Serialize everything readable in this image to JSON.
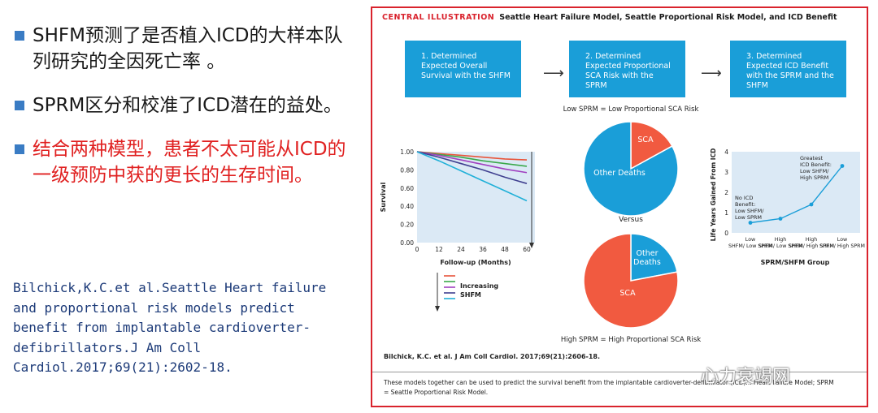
{
  "bullets": [
    {
      "text": "SHFM预测了是否植入ICD的大样本队列研究的全因死亡率 。",
      "color": "#1a1a1a",
      "marker_color": "#3a7cc4"
    },
    {
      "text": "SPRM区分和校准了ICD潜在的益处。",
      "color": "#1a1a1a",
      "marker_color": "#3a7cc4"
    },
    {
      "text": "结合两种模型，患者不太可能从ICD的一级预防中获的更长的生存时间。",
      "color": "#e02020",
      "marker_color": "#3a7cc4"
    }
  ],
  "citation": "Bilchick,K.C.et al.Seattle Heart failure\nand proportional risk models predict\nbenefit from implantable cardioverter-\ndefibrillators.J Am Coll\nCardiol.2017;69(21):2602-18.",
  "illustration": {
    "heading_red": "CENTRAL ILLUSTRATION",
    "heading": "Seattle Heart Failure Model, Seattle Proportional Risk Model, and ICD Benefit",
    "steps": [
      "1. Determined Expected Overall Survival with the SHFM",
      "2. Determined Expected Proportional SCA Risk with the SPRM",
      "3. Determined Expected ICD Benefit with the SPRM and the SHFM"
    ],
    "low_sprm_label": "Low SPRM = Low Proportional SCA Risk",
    "high_sprm_label": "High SPRM = High Proportional SCA Risk",
    "versus": "Versus",
    "citation": "Bilchick, K.C. et al. J Am Coll Cardiol. 2017;69(21):2606-18.",
    "footer": "These models together can be used to predict the survival benefit from the implantable cardioverter-defibrillator (ICD)... Heart Failure Model; SPRM = Seattle Proportional Risk Model."
  },
  "chart_data": [
    {
      "type": "line",
      "ylabel": "Survival",
      "xlabel": "Follow-up (Months)",
      "x": [
        0,
        12,
        24,
        36,
        48,
        60
      ],
      "ylim": [
        0,
        1
      ],
      "yticks": [
        "0.00",
        "0.20",
        "0.40",
        "0.60",
        "0.80",
        "1.00"
      ],
      "legend": "Increasing SHFM",
      "series": [
        {
          "color": "#e8543a",
          "values": [
            1.0,
            0.98,
            0.96,
            0.94,
            0.92,
            0.91
          ]
        },
        {
          "color": "#3aa84a",
          "values": [
            1.0,
            0.97,
            0.94,
            0.9,
            0.87,
            0.84
          ]
        },
        {
          "color": "#a040c0",
          "values": [
            1.0,
            0.96,
            0.91,
            0.86,
            0.81,
            0.77
          ]
        },
        {
          "color": "#404090",
          "values": [
            1.0,
            0.94,
            0.87,
            0.8,
            0.72,
            0.65
          ]
        },
        {
          "color": "#20b0d8",
          "values": [
            1.0,
            0.9,
            0.79,
            0.68,
            0.57,
            0.46
          ]
        }
      ]
    },
    {
      "type": "pie",
      "slices": [
        {
          "label": "SCA",
          "value": 17,
          "color": "#f15a40"
        },
        {
          "label": "Other Deaths",
          "value": 83,
          "color": "#1a9ed8"
        }
      ]
    },
    {
      "type": "pie",
      "slices": [
        {
          "label": "Other Deaths",
          "value": 22,
          "color": "#1a9ed8"
        },
        {
          "label": "SCA",
          "value": 78,
          "color": "#f15a40"
        }
      ]
    },
    {
      "type": "line",
      "ylabel": "Life Years Gained From ICD",
      "xlabel": "SPRM/SHFM Group",
      "categories": [
        "Low SHFM/ Low SPRM",
        "High SHFM/ Low SPRM",
        "High SHFM/ High SPRM",
        "Low SHFM/ High SPRM"
      ],
      "values": [
        0.5,
        0.7,
        1.4,
        3.3
      ],
      "ylim": [
        0,
        4
      ],
      "yticks": [
        "0",
        "1",
        "2",
        "3",
        "4"
      ],
      "annotations": [
        "No ICD Benefit: Low SHFM/ Low SPRM",
        "Greatest ICD Benefit: Low SHFM/ High SPRM"
      ],
      "color": "#1a9ed8"
    }
  ],
  "watermark": "心力衰竭网"
}
